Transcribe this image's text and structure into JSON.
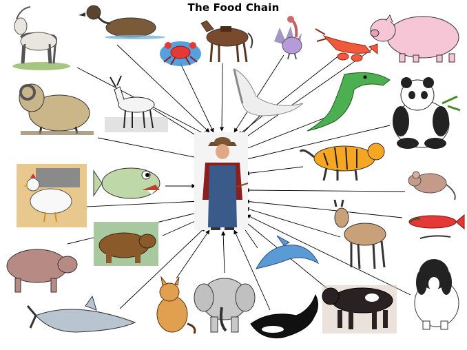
{
  "title": "The Food Chain",
  "colors": {
    "arrow": "#000000",
    "background": "#ffffff",
    "water_splash": "#3a8fd8",
    "pig_pink": "#f7c6d6",
    "tiger_orange": "#f5a623",
    "alligator_green": "#4caf50",
    "salmon_red": "#e53935",
    "dolphin_blue": "#5b9bd5",
    "bear_brown": "#8b5a2b"
  },
  "center": {
    "name": "farmer",
    "icon": "farmer-person-icon"
  },
  "animals": [
    {
      "name": "goat",
      "icon": "goat-icon"
    },
    {
      "name": "duck",
      "icon": "duck-icon"
    },
    {
      "name": "crab",
      "icon": "crab-icon"
    },
    {
      "name": "horse",
      "icon": "horse-icon"
    },
    {
      "name": "turkey",
      "icon": "turkey-icon"
    },
    {
      "name": "lobster",
      "icon": "lobster-icon"
    },
    {
      "name": "pig",
      "icon": "pig-icon"
    },
    {
      "name": "ram",
      "icon": "ram-icon"
    },
    {
      "name": "deer",
      "icon": "deer-icon"
    },
    {
      "name": "swan",
      "icon": "swan-icon"
    },
    {
      "name": "alligator",
      "icon": "alligator-icon"
    },
    {
      "name": "panda",
      "icon": "panda-icon"
    },
    {
      "name": "tiger",
      "icon": "tiger-icon"
    },
    {
      "name": "chicken",
      "icon": "chicken-icon"
    },
    {
      "name": "fish",
      "icon": "fish-icon"
    },
    {
      "name": "mouse",
      "icon": "mouse-icon"
    },
    {
      "name": "donkey",
      "icon": "donkey-icon"
    },
    {
      "name": "salmon",
      "icon": "salmon-icon"
    },
    {
      "name": "bear",
      "icon": "bear-icon"
    },
    {
      "name": "boar",
      "icon": "boar-icon"
    },
    {
      "name": "dolphin",
      "icon": "dolphin-icon"
    },
    {
      "name": "dog",
      "icon": "dog-icon"
    },
    {
      "name": "shark",
      "icon": "shark-icon"
    },
    {
      "name": "cat",
      "icon": "cat-icon"
    },
    {
      "name": "elephant",
      "icon": "elephant-icon"
    },
    {
      "name": "whale",
      "icon": "whale-icon"
    },
    {
      "name": "cow",
      "icon": "cow-icon"
    }
  ]
}
